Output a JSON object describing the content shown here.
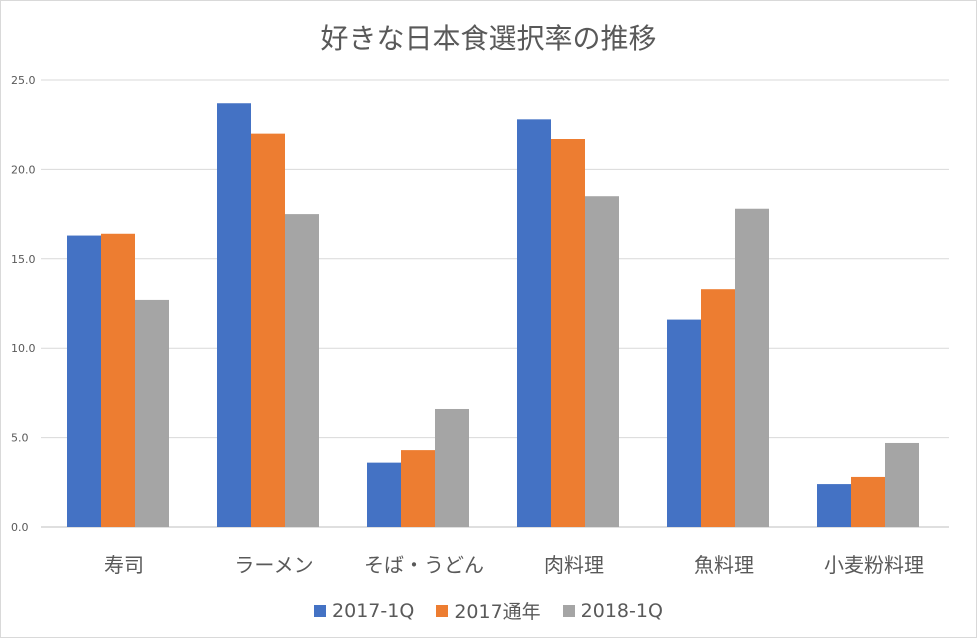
{
  "chart_data": {
    "type": "bar",
    "title": "好きな日本食選択率の推移",
    "categories": [
      "寿司",
      "ラーメン",
      "そば・うどん",
      "肉料理",
      "魚料理",
      "小麦粉料理"
    ],
    "series": [
      {
        "name": "2017-1Q",
        "color": "#4472c4",
        "values": [
          16.3,
          23.7,
          3.6,
          22.8,
          11.6,
          2.4
        ]
      },
      {
        "name": "2017通年",
        "color": "#ed7d31",
        "values": [
          16.4,
          22.0,
          4.3,
          21.7,
          13.3,
          2.8
        ]
      },
      {
        "name": "2018-1Q",
        "color": "#a5a5a5",
        "values": [
          12.7,
          17.5,
          6.6,
          18.5,
          17.8,
          4.7
        ]
      }
    ],
    "yticks": [
      "0.0",
      "5.0",
      "10.0",
      "15.0",
      "20.0",
      "25.0"
    ],
    "ylim": [
      0,
      25
    ],
    "xlabel": "",
    "ylabel": "",
    "grid": true,
    "legend": "bottom"
  }
}
